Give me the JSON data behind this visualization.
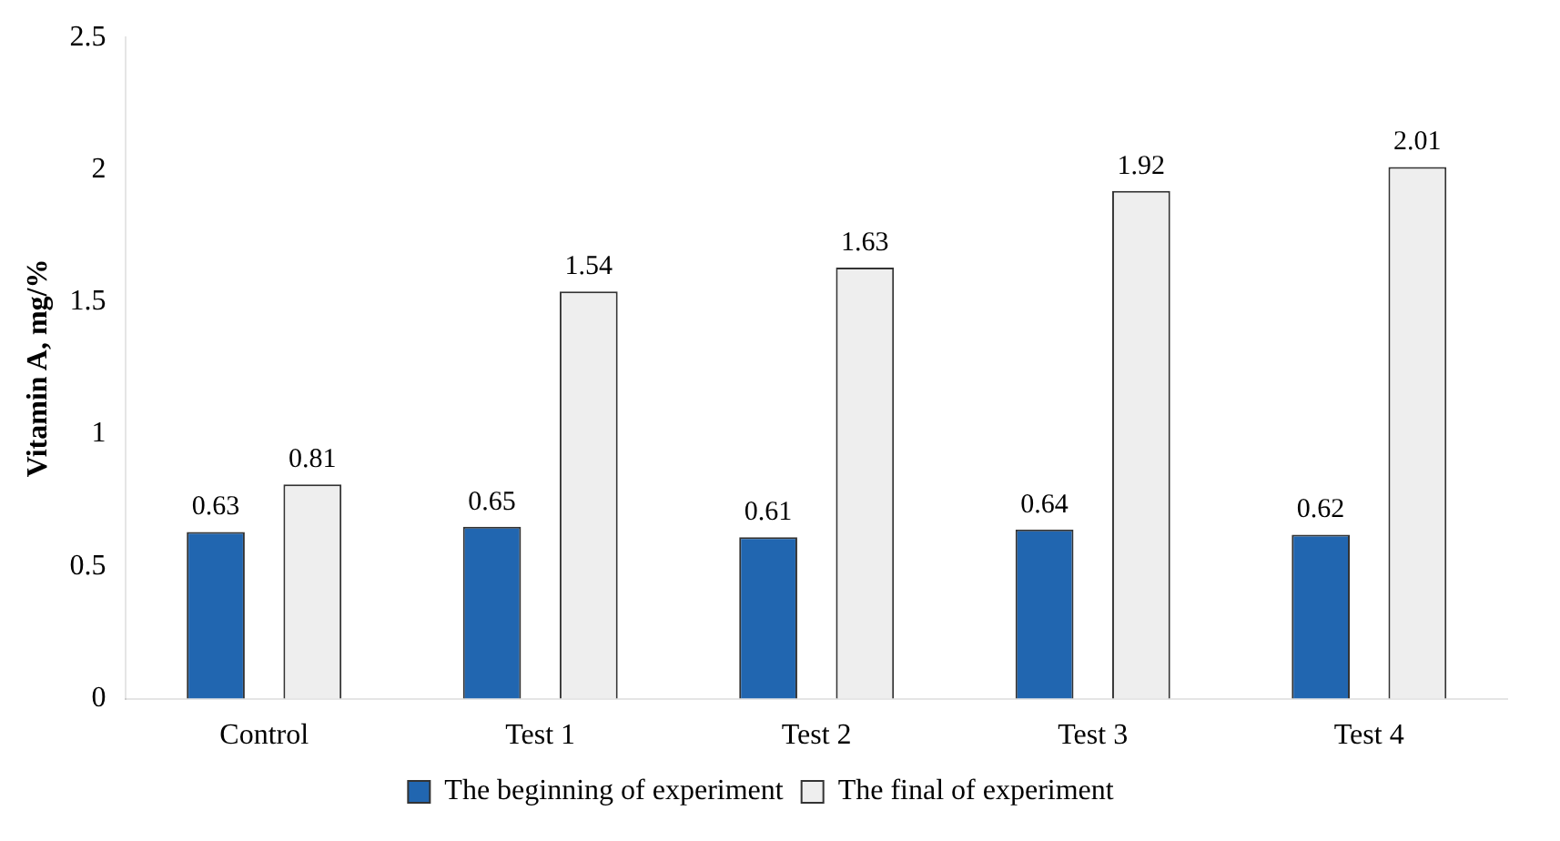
{
  "chart_data": {
    "type": "bar",
    "ylabel": "Vitamin A, mg/%",
    "categories": [
      "Control",
      "Test 1",
      "Test 2",
      "Test 3",
      "Test 4"
    ],
    "series": [
      {
        "name": "The beginning of experiment",
        "color": "#2166b0",
        "values": [
          0.63,
          0.65,
          0.61,
          0.64,
          0.62
        ]
      },
      {
        "name": "The final of experiment",
        "color": "#eeeeee",
        "values": [
          0.81,
          1.54,
          1.63,
          1.92,
          2.01
        ]
      }
    ],
    "ylim": [
      0,
      2.5
    ],
    "yticks": [
      0,
      0.5,
      1,
      1.5,
      2,
      2.5
    ],
    "grid": false,
    "legend": "bottom",
    "data_labels": true
  }
}
